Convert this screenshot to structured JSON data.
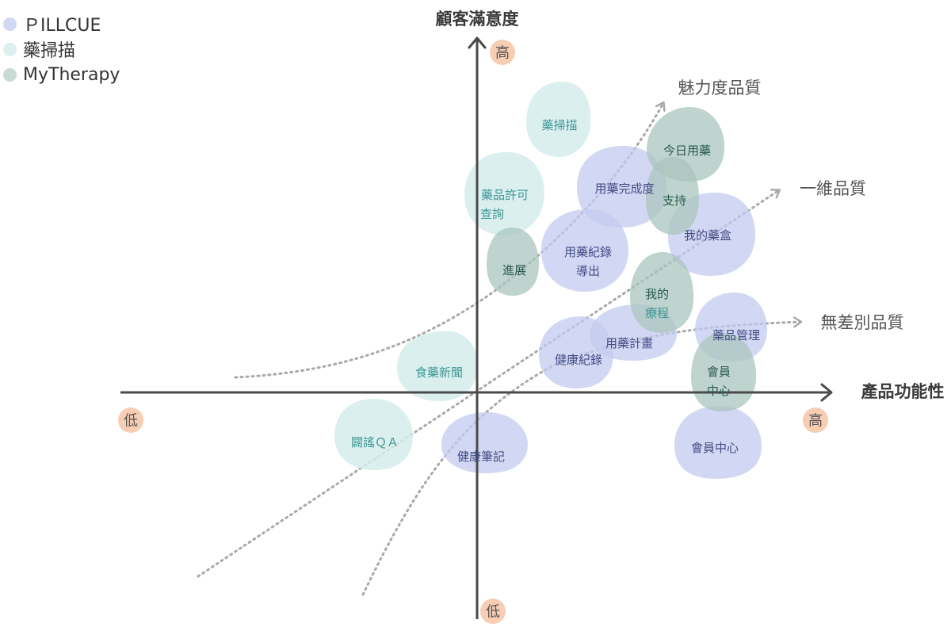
{
  "legend": [
    {
      "label": "ＰILLCUE",
      "color": "#d2d8f3"
    },
    {
      "label": "藥掃描",
      "color": "#def0f0"
    },
    {
      "label": "MyTherapy",
      "color": "#c7dad6"
    }
  ],
  "axes": {
    "y_title": "顧客滿意度",
    "x_title": "產品功能性",
    "y_high": "高",
    "y_low": "低",
    "x_high": "高",
    "x_low": "低"
  },
  "curves": {
    "attractive": "魅力度品質",
    "one_dimensional": "一維品質",
    "indifferent": "無差別品質"
  },
  "colors": {
    "pillcue_fill": "#c3cbef",
    "pillcue_text": "#414c84",
    "scan_fill": "#d5ecec",
    "scan_text": "#3e9896",
    "mytherapy_fill": "#a9c5be",
    "mytherapy_text": "#2b5a51",
    "badge": "#f7cdb3",
    "axis": "#4a4a4a",
    "curve": "#a9a9a9"
  },
  "blobs": {
    "scan_drug_scan": "藥掃描",
    "scan_license_1": "藥品許可",
    "scan_license_2": "查詢",
    "scan_food": "食藥新聞",
    "scan_rumor": "闢謠ＱＡ",
    "pc_completion": "用藥完成度",
    "pc_record_1": "用藥紀錄",
    "pc_record_2": "導出",
    "pc_pillbox": "我的藥盒",
    "pc_plan": "用藥計畫",
    "pc_health_record": "健康紀錄",
    "pc_management": "藥品管理",
    "pc_member": "會員中心",
    "pc_notes": "健康筆記",
    "mt_today": "今日用藥",
    "mt_support": "支持",
    "mt_progress": "進展",
    "mt_course_1": "我的",
    "mt_course_2": "療程",
    "mt_member_1": "會員",
    "mt_member_2": "中心"
  }
}
